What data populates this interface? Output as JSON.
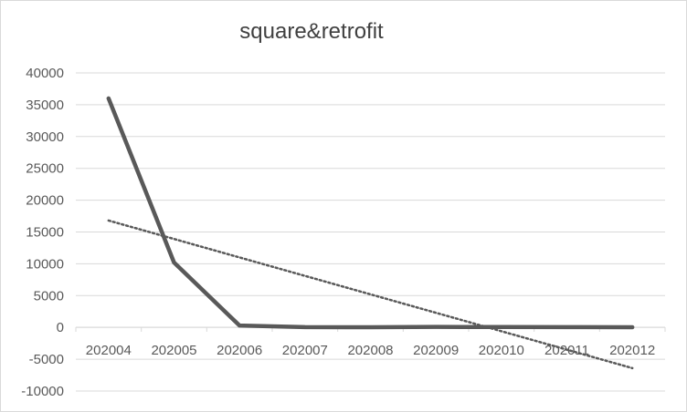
{
  "chart_data": {
    "type": "line",
    "title": "square&retrofit",
    "xlabel": "",
    "ylabel": "",
    "categories": [
      "202004",
      "202005",
      "202006",
      "202007",
      "202008",
      "202009",
      "202010",
      "202011",
      "202012"
    ],
    "series": [
      {
        "values": [
          36000,
          10200,
          300,
          50,
          30,
          80,
          60,
          40,
          30
        ],
        "color": "#595959",
        "style": "solid"
      }
    ],
    "trendline": {
      "type": "linear",
      "style": "dotted",
      "color": "#595959",
      "start": 16800,
      "end": -6400
    },
    "ylim": [
      -10000,
      40000
    ],
    "yticks": [
      40000,
      35000,
      30000,
      25000,
      20000,
      15000,
      10000,
      5000,
      0,
      -5000,
      -10000
    ],
    "grid": true,
    "legend": "none"
  }
}
